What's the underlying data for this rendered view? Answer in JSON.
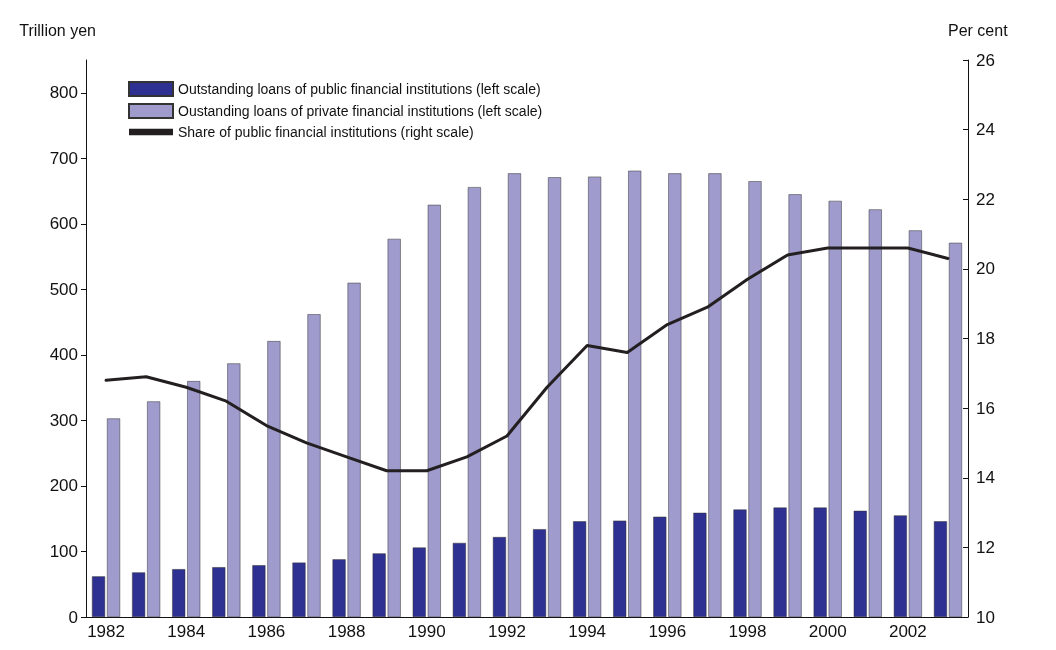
{
  "chart_data": {
    "type": "bar",
    "ylabel": "Trillion yen",
    "y2label": "Per cent",
    "categories": [
      "1982",
      null,
      "1984",
      null,
      "1986",
      null,
      "1988",
      null,
      "1990",
      null,
      "1992",
      null,
      "1994",
      null,
      "1996",
      null,
      "1998",
      null,
      "2000",
      null,
      "2002",
      null
    ],
    "series": [
      {
        "name": "Outstanding loans of public financial institutions (left scale)",
        "color": "#2e3192",
        "values": [
          62,
          68,
          73,
          76,
          79,
          83,
          88,
          97,
          106,
          113,
          122,
          134,
          146,
          147,
          153,
          159,
          164,
          167,
          167,
          162,
          155,
          146
        ]
      },
      {
        "name": "Oustanding loans of private financial institutions (left scale)",
        "color": "#9f9bcc",
        "values": [
          303,
          329,
          360,
          387,
          421,
          462,
          510,
          577,
          629,
          656,
          677,
          671,
          672,
          681,
          677,
          677,
          665,
          645,
          635,
          622,
          590,
          571
        ]
      },
      {
        "name": "Share of public financial institutions (right scale)",
        "type": "line",
        "axis": "y2",
        "color": "#231f20",
        "values": [
          16.8,
          16.9,
          16.6,
          16.2,
          15.5,
          15.0,
          14.6,
          14.2,
          14.2,
          14.6,
          15.2,
          16.6,
          17.8,
          17.6,
          18.4,
          18.9,
          19.7,
          20.4,
          20.6,
          20.6,
          20.6,
          20.3
        ]
      }
    ],
    "ylim": [
      0,
      850
    ],
    "yticks": [
      0,
      100,
      200,
      300,
      400,
      500,
      600,
      700,
      800
    ],
    "y2lim": [
      10,
      26
    ],
    "y2ticks": [
      10,
      12,
      14,
      16,
      18,
      20,
      22,
      24,
      26
    ],
    "legend": "top left",
    "grid": false,
    "marker": "none",
    "line_style": "solid"
  }
}
